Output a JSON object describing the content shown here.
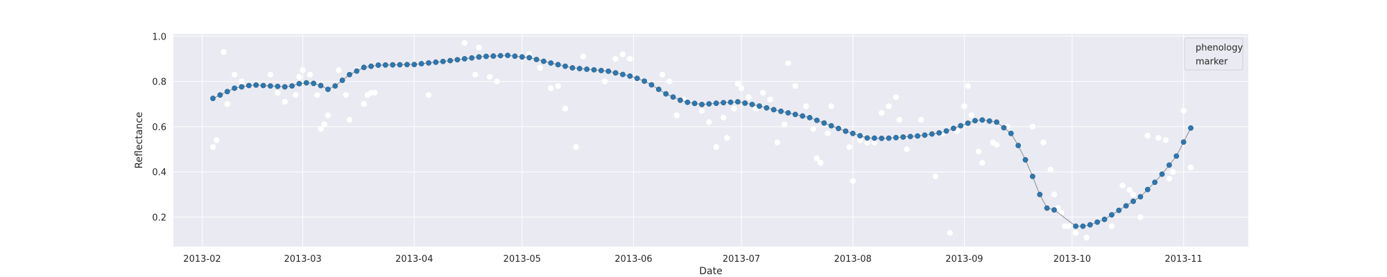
{
  "chart_data": {
    "type": "scatter",
    "title": "",
    "xlabel": "Date",
    "ylabel": "Reflectance",
    "x_axis_type": "date",
    "xlim": [
      "2013-01-24",
      "2013-11-19"
    ],
    "ylim": [
      0.07,
      1.01
    ],
    "xticks": [
      "2013-02-01",
      "2013-03-01",
      "2013-04-01",
      "2013-05-01",
      "2013-06-01",
      "2013-07-01",
      "2013-08-01",
      "2013-09-01",
      "2013-10-01",
      "2013-11-01"
    ],
    "xtick_labels": [
      "2013-02",
      "2013-03",
      "2013-04",
      "2013-05",
      "2013-06",
      "2013-07",
      "2013-08",
      "2013-09",
      "2013-10",
      "2013-11"
    ],
    "yticks": [
      0.2,
      0.4,
      0.6,
      0.8,
      1.0
    ],
    "ytick_labels": [
      "0.2",
      "0.4",
      "0.6",
      "0.8",
      "1.0"
    ],
    "grid": true,
    "background": "#eaeaf2",
    "legend": {
      "position": "top-right",
      "entries": [
        "phenology",
        "marker"
      ]
    },
    "colors": {
      "curve": "#2f77ad",
      "raw": "#ffffff",
      "line": "#8a8a8a"
    },
    "smoothed_key": [
      [
        "2013-02-04",
        0.725
      ],
      [
        "2013-02-10",
        0.77
      ],
      [
        "2013-02-15",
        0.785
      ],
      [
        "2013-02-20",
        0.78
      ],
      [
        "2013-02-25",
        0.775
      ],
      [
        "2013-03-01",
        0.795
      ],
      [
        "2013-03-05",
        0.79
      ],
      [
        "2013-03-08",
        0.765
      ],
      [
        "2013-03-10",
        0.78
      ],
      [
        "2013-03-14",
        0.83
      ],
      [
        "2013-03-18",
        0.862
      ],
      [
        "2013-03-22",
        0.872
      ],
      [
        "2013-04-01",
        0.875
      ],
      [
        "2013-04-10",
        0.89
      ],
      [
        "2013-04-20",
        0.91
      ],
      [
        "2013-04-27",
        0.915
      ],
      [
        "2013-05-03",
        0.905
      ],
      [
        "2013-05-08",
        0.885
      ],
      [
        "2013-05-15",
        0.86
      ],
      [
        "2013-05-25",
        0.845
      ],
      [
        "2013-06-01",
        0.82
      ],
      [
        "2013-06-05",
        0.795
      ],
      [
        "2013-06-10",
        0.745
      ],
      [
        "2013-06-15",
        0.71
      ],
      [
        "2013-06-20",
        0.698
      ],
      [
        "2013-06-25",
        0.705
      ],
      [
        "2013-06-30",
        0.71
      ],
      [
        "2013-07-05",
        0.695
      ],
      [
        "2013-07-10",
        0.675
      ],
      [
        "2013-07-20",
        0.64
      ],
      [
        "2013-07-30",
        0.58
      ],
      [
        "2013-08-05",
        0.55
      ],
      [
        "2013-08-10",
        0.548
      ],
      [
        "2013-08-20",
        0.56
      ],
      [
        "2013-08-26",
        0.575
      ],
      [
        "2013-09-01",
        0.61
      ],
      [
        "2013-09-05",
        0.632
      ],
      [
        "2013-09-10",
        0.62
      ],
      [
        "2013-09-14",
        0.57
      ],
      [
        "2013-09-17",
        0.49
      ],
      [
        "2013-09-20",
        0.38
      ],
      [
        "2013-09-22",
        0.3
      ],
      [
        "2013-09-24",
        0.24
      ],
      [
        "2013-09-26",
        0.232
      ],
      [
        "2013-09-28",
        0.22
      ],
      [
        "2013-10-01",
        0.16
      ],
      [
        "2013-10-05",
        0.16
      ],
      [
        "2013-10-10",
        0.19
      ],
      [
        "2013-10-15",
        0.24
      ],
      [
        "2013-10-20",
        0.29
      ],
      [
        "2013-10-25",
        0.37
      ],
      [
        "2013-10-30",
        0.47
      ],
      [
        "2013-11-04",
        0.625
      ]
    ],
    "smoothed_step_days": 2,
    "raw_points": [
      [
        "2013-02-04",
        0.51
      ],
      [
        "2013-02-05",
        0.54
      ],
      [
        "2013-02-07",
        0.93
      ],
      [
        "2013-02-08",
        0.7
      ],
      [
        "2013-02-10",
        0.83
      ],
      [
        "2013-02-12",
        0.8
      ],
      [
        "2013-02-20",
        0.83
      ],
      [
        "2013-02-22",
        0.75
      ],
      [
        "2013-02-24",
        0.71
      ],
      [
        "2013-02-27",
        0.74
      ],
      [
        "2013-02-28",
        0.82
      ],
      [
        "2013-03-01",
        0.85
      ],
      [
        "2013-03-03",
        0.83
      ],
      [
        "2013-03-05",
        0.74
      ],
      [
        "2013-03-06",
        0.59
      ],
      [
        "2013-03-07",
        0.61
      ],
      [
        "2013-03-08",
        0.65
      ],
      [
        "2013-03-11",
        0.85
      ],
      [
        "2013-03-13",
        0.74
      ],
      [
        "2013-03-14",
        0.63
      ],
      [
        "2013-03-16",
        0.85
      ],
      [
        "2013-03-18",
        0.7
      ],
      [
        "2013-03-19",
        0.74
      ],
      [
        "2013-03-20",
        0.75
      ],
      [
        "2013-03-21",
        0.75
      ],
      [
        "2013-04-05",
        0.74
      ],
      [
        "2013-04-15",
        0.97
      ],
      [
        "2013-04-18",
        0.83
      ],
      [
        "2013-04-19",
        0.95
      ],
      [
        "2013-04-22",
        0.82
      ],
      [
        "2013-04-24",
        0.8
      ],
      [
        "2013-04-25",
        0.91
      ],
      [
        "2013-05-03",
        0.92
      ],
      [
        "2013-05-06",
        0.86
      ],
      [
        "2013-05-09",
        0.77
      ],
      [
        "2013-05-11",
        0.78
      ],
      [
        "2013-05-13",
        0.68
      ],
      [
        "2013-05-16",
        0.51
      ],
      [
        "2013-05-18",
        0.91
      ],
      [
        "2013-05-21",
        0.85
      ],
      [
        "2013-05-24",
        0.8
      ],
      [
        "2013-05-27",
        0.9
      ],
      [
        "2013-05-29",
        0.92
      ],
      [
        "2013-05-31",
        0.9
      ],
      [
        "2013-06-09",
        0.83
      ],
      [
        "2013-06-11",
        0.8
      ],
      [
        "2013-06-13",
        0.65
      ],
      [
        "2013-06-15",
        0.72
      ],
      [
        "2013-06-20",
        0.67
      ],
      [
        "2013-06-22",
        0.62
      ],
      [
        "2013-06-24",
        0.51
      ],
      [
        "2013-06-26",
        0.64
      ],
      [
        "2013-06-27",
        0.55
      ],
      [
        "2013-06-29",
        0.68
      ],
      [
        "2013-06-30",
        0.79
      ],
      [
        "2013-07-01",
        0.77
      ],
      [
        "2013-07-03",
        0.73
      ],
      [
        "2013-07-05",
        0.68
      ],
      [
        "2013-07-07",
        0.75
      ],
      [
        "2013-07-09",
        0.72
      ],
      [
        "2013-07-11",
        0.53
      ],
      [
        "2013-07-13",
        0.61
      ],
      [
        "2013-07-14",
        0.88
      ],
      [
        "2013-07-16",
        0.78
      ],
      [
        "2013-07-19",
        0.69
      ],
      [
        "2013-07-21",
        0.59
      ],
      [
        "2013-07-22",
        0.46
      ],
      [
        "2013-07-23",
        0.44
      ],
      [
        "2013-07-25",
        0.57
      ],
      [
        "2013-07-26",
        0.69
      ],
      [
        "2013-07-31",
        0.51
      ],
      [
        "2013-08-01",
        0.36
      ],
      [
        "2013-08-03",
        0.54
      ],
      [
        "2013-08-05",
        0.53
      ],
      [
        "2013-08-07",
        0.53
      ],
      [
        "2013-08-09",
        0.66
      ],
      [
        "2013-08-11",
        0.69
      ],
      [
        "2013-08-13",
        0.73
      ],
      [
        "2013-08-14",
        0.63
      ],
      [
        "2013-08-16",
        0.5
      ],
      [
        "2013-08-20",
        0.63
      ],
      [
        "2013-08-24",
        0.38
      ],
      [
        "2013-08-26",
        0.57
      ],
      [
        "2013-08-28",
        0.13
      ],
      [
        "2013-08-30",
        0.58
      ],
      [
        "2013-09-01",
        0.69
      ],
      [
        "2013-09-02",
        0.78
      ],
      [
        "2013-09-03",
        0.65
      ],
      [
        "2013-09-05",
        0.49
      ],
      [
        "2013-09-06",
        0.44
      ],
      [
        "2013-09-09",
        0.53
      ],
      [
        "2013-09-10",
        0.52
      ],
      [
        "2013-09-13",
        0.6
      ],
      [
        "2013-09-20",
        0.6
      ],
      [
        "2013-09-23",
        0.53
      ],
      [
        "2013-09-25",
        0.41
      ],
      [
        "2013-09-26",
        0.3
      ],
      [
        "2013-09-27",
        0.24
      ],
      [
        "2013-09-28",
        0.22
      ],
      [
        "2013-09-29",
        0.16
      ],
      [
        "2013-09-30",
        0.16
      ],
      [
        "2013-10-02",
        0.13
      ],
      [
        "2013-10-05",
        0.11
      ],
      [
        "2013-10-12",
        0.16
      ],
      [
        "2013-10-15",
        0.34
      ],
      [
        "2013-10-17",
        0.32
      ],
      [
        "2013-10-18",
        0.3
      ],
      [
        "2013-10-20",
        0.2
      ],
      [
        "2013-10-22",
        0.56
      ],
      [
        "2013-10-25",
        0.55
      ],
      [
        "2013-10-27",
        0.54
      ],
      [
        "2013-10-28",
        0.37
      ],
      [
        "2013-10-29",
        0.4
      ],
      [
        "2013-11-01",
        0.67
      ],
      [
        "2013-11-03",
        0.42
      ]
    ]
  }
}
